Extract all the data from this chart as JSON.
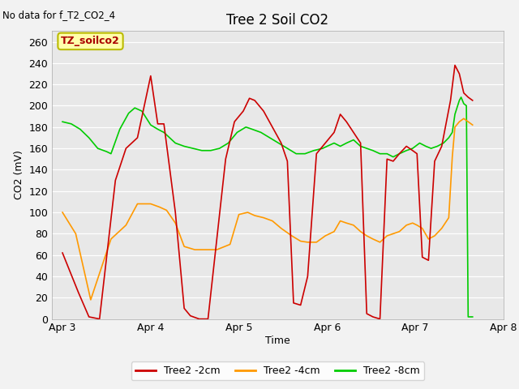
{
  "title": "Tree 2 Soil CO2",
  "no_data_label": "No data for f_T2_CO2_4",
  "ylabel": "CO2 (mV)",
  "xlabel": "Time",
  "ylim": [
    0,
    270
  ],
  "fig_facecolor": "#f0f0f0",
  "plot_facecolor": "#e0e0e0",
  "annotation_text": "TZ_soilco2",
  "series": {
    "red": {
      "label": "Tree2 -2cm",
      "color": "#cc0000",
      "points": [
        [
          0.0,
          62
        ],
        [
          0.18,
          25
        ],
        [
          0.3,
          2
        ],
        [
          0.42,
          0
        ],
        [
          0.6,
          130
        ],
        [
          0.72,
          160
        ],
        [
          0.85,
          170
        ],
        [
          1.0,
          228
        ],
        [
          1.08,
          183
        ],
        [
          1.15,
          183
        ],
        [
          1.28,
          100
        ],
        [
          1.38,
          10
        ],
        [
          1.45,
          3
        ],
        [
          1.55,
          0
        ],
        [
          1.65,
          0
        ],
        [
          1.85,
          150
        ],
        [
          1.95,
          185
        ],
        [
          2.05,
          195
        ],
        [
          2.12,
          207
        ],
        [
          2.18,
          205
        ],
        [
          2.28,
          195
        ],
        [
          2.38,
          180
        ],
        [
          2.48,
          165
        ],
        [
          2.55,
          148
        ],
        [
          2.62,
          15
        ],
        [
          2.7,
          13
        ],
        [
          2.78,
          40
        ],
        [
          2.88,
          155
        ],
        [
          2.98,
          165
        ],
        [
          3.08,
          175
        ],
        [
          3.15,
          192
        ],
        [
          3.22,
          185
        ],
        [
          3.3,
          175
        ],
        [
          3.38,
          165
        ],
        [
          3.45,
          5
        ],
        [
          3.52,
          2
        ],
        [
          3.6,
          0
        ],
        [
          3.68,
          150
        ],
        [
          3.75,
          148
        ],
        [
          3.82,
          155
        ],
        [
          3.9,
          162
        ],
        [
          3.97,
          158
        ],
        [
          4.02,
          155
        ],
        [
          4.08,
          58
        ],
        [
          4.15,
          55
        ],
        [
          4.22,
          148
        ],
        [
          4.3,
          162
        ],
        [
          4.4,
          205
        ],
        [
          4.45,
          238
        ],
        [
          4.5,
          230
        ],
        [
          4.55,
          212
        ],
        [
          4.6,
          208
        ],
        [
          4.65,
          205
        ]
      ]
    },
    "orange": {
      "label": "Tree2 -4cm",
      "color": "#ff9900",
      "points": [
        [
          0.0,
          100
        ],
        [
          0.15,
          80
        ],
        [
          0.32,
          18
        ],
        [
          0.55,
          75
        ],
        [
          0.72,
          88
        ],
        [
          0.85,
          108
        ],
        [
          1.0,
          108
        ],
        [
          1.1,
          105
        ],
        [
          1.18,
          102
        ],
        [
          1.28,
          90
        ],
        [
          1.38,
          68
        ],
        [
          1.5,
          65
        ],
        [
          1.65,
          65
        ],
        [
          1.75,
          65
        ],
        [
          1.9,
          70
        ],
        [
          2.0,
          98
        ],
        [
          2.1,
          100
        ],
        [
          2.18,
          97
        ],
        [
          2.28,
          95
        ],
        [
          2.38,
          92
        ],
        [
          2.48,
          85
        ],
        [
          2.6,
          78
        ],
        [
          2.7,
          73
        ],
        [
          2.78,
          72
        ],
        [
          2.88,
          72
        ],
        [
          2.98,
          78
        ],
        [
          3.08,
          82
        ],
        [
          3.15,
          92
        ],
        [
          3.22,
          90
        ],
        [
          3.3,
          88
        ],
        [
          3.38,
          82
        ],
        [
          3.45,
          78
        ],
        [
          3.52,
          75
        ],
        [
          3.6,
          72
        ],
        [
          3.68,
          78
        ],
        [
          3.75,
          80
        ],
        [
          3.82,
          82
        ],
        [
          3.9,
          88
        ],
        [
          3.97,
          90
        ],
        [
          4.02,
          88
        ],
        [
          4.08,
          85
        ],
        [
          4.15,
          75
        ],
        [
          4.22,
          78
        ],
        [
          4.3,
          85
        ],
        [
          4.38,
          95
        ],
        [
          4.42,
          152
        ],
        [
          4.45,
          180
        ],
        [
          4.5,
          185
        ],
        [
          4.55,
          188
        ],
        [
          4.6,
          185
        ],
        [
          4.65,
          182
        ]
      ]
    },
    "green": {
      "label": "Tree2 -8cm",
      "color": "#00cc00",
      "points": [
        [
          0.0,
          185
        ],
        [
          0.1,
          183
        ],
        [
          0.2,
          178
        ],
        [
          0.3,
          170
        ],
        [
          0.4,
          160
        ],
        [
          0.5,
          157
        ],
        [
          0.55,
          155
        ],
        [
          0.65,
          178
        ],
        [
          0.75,
          193
        ],
        [
          0.82,
          198
        ],
        [
          0.9,
          195
        ],
        [
          1.0,
          182
        ],
        [
          1.08,
          178
        ],
        [
          1.15,
          175
        ],
        [
          1.28,
          165
        ],
        [
          1.38,
          162
        ],
        [
          1.48,
          160
        ],
        [
          1.58,
          158
        ],
        [
          1.68,
          158
        ],
        [
          1.78,
          160
        ],
        [
          1.88,
          165
        ],
        [
          1.98,
          175
        ],
        [
          2.08,
          180
        ],
        [
          2.15,
          178
        ],
        [
          2.25,
          175
        ],
        [
          2.35,
          170
        ],
        [
          2.45,
          165
        ],
        [
          2.55,
          160
        ],
        [
          2.65,
          155
        ],
        [
          2.75,
          155
        ],
        [
          2.85,
          158
        ],
        [
          2.95,
          160
        ],
        [
          3.0,
          162
        ],
        [
          3.08,
          165
        ],
        [
          3.15,
          162
        ],
        [
          3.22,
          165
        ],
        [
          3.3,
          168
        ],
        [
          3.38,
          162
        ],
        [
          3.45,
          160
        ],
        [
          3.52,
          158
        ],
        [
          3.6,
          155
        ],
        [
          3.68,
          155
        ],
        [
          3.75,
          152
        ],
        [
          3.82,
          155
        ],
        [
          3.9,
          158
        ],
        [
          3.97,
          160
        ],
        [
          4.05,
          165
        ],
        [
          4.12,
          162
        ],
        [
          4.18,
          160
        ],
        [
          4.25,
          162
        ],
        [
          4.32,
          165
        ],
        [
          4.38,
          170
        ],
        [
          4.42,
          175
        ],
        [
          4.45,
          192
        ],
        [
          4.5,
          205
        ],
        [
          4.52,
          208
        ],
        [
          4.55,
          202
        ],
        [
          4.58,
          200
        ],
        [
          4.6,
          2
        ],
        [
          4.65,
          2
        ]
      ]
    }
  },
  "xticks": [
    0,
    1,
    2,
    3,
    4,
    5
  ],
  "xticklabels": [
    "Apr 3",
    "Apr 4",
    "Apr 5",
    "Apr 6",
    "Apr 7",
    "Apr 8"
  ],
  "yticks": [
    0,
    20,
    40,
    60,
    80,
    100,
    120,
    140,
    160,
    180,
    200,
    220,
    240,
    260
  ]
}
